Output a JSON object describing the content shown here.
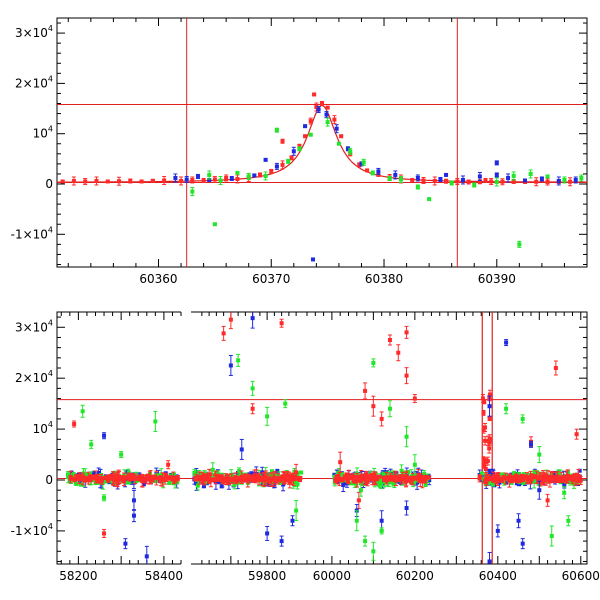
{
  "colors": {
    "red": "#ff2a2a",
    "blue": "#1f2ae0",
    "green": "#22e62a",
    "line": "#e02020",
    "axis": "#000000"
  },
  "chart_data": [
    {
      "type": "scatter",
      "title": "",
      "xlabel": "",
      "ylabel": "",
      "xlim": [
        60351,
        60398
      ],
      "ylim": [
        -16500,
        33000
      ],
      "x_ticks": [
        60360,
        60370,
        60380,
        60390
      ],
      "y_ticks": [
        {
          "value": -10000,
          "mant": "-1×10",
          "exp": "4"
        },
        {
          "value": 0,
          "mant": "0",
          "exp": ""
        },
        {
          "value": 10000,
          "mant": "10",
          "exp": "4"
        },
        {
          "value": 20000,
          "mant": "2×10",
          "exp": "4"
        },
        {
          "value": 30000,
          "mant": "3×10",
          "exp": "4"
        }
      ],
      "hlines": [
        15800,
        300
      ],
      "vlines": [
        60362.5,
        60386.5
      ],
      "grid": false,
      "model_curve": {
        "peak_x": 60374.5,
        "peak_y": 15600,
        "base_y": 300,
        "width": 1.6
      },
      "series": [
        {
          "color": "red",
          "points": [
            [
              60351.5,
              500
            ],
            [
              60352.5,
              600
            ],
            [
              60353.5,
              500
            ],
            [
              60354.5,
              600
            ],
            [
              60355.5,
              500
            ],
            [
              60356.5,
              550
            ],
            [
              60357.5,
              600
            ],
            [
              60358.5,
              500
            ],
            [
              60359.5,
              650
            ],
            [
              60360.5,
              700
            ],
            [
              60362.0,
              600
            ],
            [
              60363.0,
              800
            ],
            [
              60364.0,
              700
            ],
            [
              60365.0,
              900
            ],
            [
              60366.0,
              1200
            ],
            [
              60367.0,
              1000
            ],
            [
              60368.0,
              1300
            ],
            [
              60369.0,
              1800
            ],
            [
              60370.0,
              2500
            ],
            [
              60371.0,
              3800
            ],
            [
              60371.8,
              5200
            ],
            [
              60372.5,
              7500
            ],
            [
              60373.0,
              9500
            ],
            [
              60373.5,
              12500
            ],
            [
              60374.0,
              15300
            ],
            [
              60374.5,
              16000
            ],
            [
              60375.0,
              15200
            ],
            [
              60375.6,
              12800
            ],
            [
              60376.2,
              9500
            ],
            [
              60377.0,
              6000
            ],
            [
              60377.8,
              3800
            ],
            [
              60378.5,
              2700
            ],
            [
              60379.5,
              1800
            ],
            [
              60380.5,
              1300
            ],
            [
              60381.5,
              1000
            ],
            [
              60382.5,
              800
            ],
            [
              60383.5,
              700
            ],
            [
              60384.5,
              600
            ],
            [
              60385.5,
              550
            ],
            [
              60386.5,
              500
            ],
            [
              60387.5,
              400
            ],
            [
              60388.5,
              450
            ],
            [
              60389.5,
              500
            ],
            [
              60390.5,
              450
            ],
            [
              60391.5,
              500
            ],
            [
              60392.5,
              400
            ],
            [
              60393.5,
              450
            ],
            [
              60394.5,
              400
            ],
            [
              60395.5,
              500
            ],
            [
              60396.5,
              450
            ],
            [
              60371.0,
              8500
            ],
            [
              60373.8,
              17800
            ],
            [
              60389.0,
              700
            ]
          ]
        },
        {
          "color": "blue",
          "points": [
            [
              60361.5,
              1200
            ],
            [
              60362.5,
              900
            ],
            [
              60363.5,
              1500
            ],
            [
              60364.5,
              800
            ],
            [
              60366.5,
              1100
            ],
            [
              60368.5,
              1700
            ],
            [
              60369.5,
              4800
            ],
            [
              60370.5,
              3500
            ],
            [
              60372.0,
              6500
            ],
            [
              60373.0,
              11500
            ],
            [
              60374.2,
              14800
            ],
            [
              60374.9,
              13800
            ],
            [
              60375.8,
              11000
            ],
            [
              60376.8,
              7000
            ],
            [
              60378.0,
              4000
            ],
            [
              60379.5,
              2500
            ],
            [
              60381.0,
              1800
            ],
            [
              60383.0,
              1200
            ],
            [
              60385.0,
              900
            ],
            [
              60387.0,
              800
            ],
            [
              60388.5,
              1500
            ],
            [
              60390.0,
              1800
            ],
            [
              60391.0,
              1200
            ],
            [
              60392.5,
              700
            ],
            [
              60394.0,
              1000
            ],
            [
              60395.5,
              600
            ],
            [
              60397.0,
              800
            ],
            [
              60385.5,
              1800
            ],
            [
              60373.7,
              -15000
            ],
            [
              60390.0,
              4200
            ]
          ]
        },
        {
          "color": "green",
          "points": [
            [
              60364.5,
              1800
            ],
            [
              60365.5,
              700
            ],
            [
              60367.0,
              2200
            ],
            [
              60368.0,
              1500
            ],
            [
              60369.5,
              1600
            ],
            [
              60370.5,
              10700
            ],
            [
              60371.5,
              4500
            ],
            [
              60372.5,
              7000
            ],
            [
              60373.5,
              9800
            ],
            [
              60375.0,
              12300
            ],
            [
              60376.0,
              8000
            ],
            [
              60377.0,
              6500
            ],
            [
              60378.2,
              4300
            ],
            [
              60379.0,
              2200
            ],
            [
              60380.5,
              1100
            ],
            [
              60381.5,
              900
            ],
            [
              60383.0,
              -600
            ],
            [
              60384.0,
              -3000
            ],
            [
              60386.0,
              200
            ],
            [
              60388.0,
              -200
            ],
            [
              60390.0,
              400
            ],
            [
              60391.5,
              1600
            ],
            [
              60393.0,
              2000
            ],
            [
              60394.5,
              1500
            ],
            [
              60396.0,
              800
            ],
            [
              60397.5,
              1200
            ],
            [
              60365.0,
              -8000
            ],
            [
              60392.0,
              -12000
            ],
            [
              60363.0,
              -1500
            ]
          ]
        }
      ]
    },
    {
      "type": "scatter",
      "title": "",
      "xlabel": "",
      "ylabel": "",
      "segments": [
        {
          "xlim": [
            58150,
            58440
          ],
          "ticks": [
            58200,
            58300,
            58400
          ],
          "tick_labels": [
            58200,
            58400
          ]
        },
        {
          "xlim": [
            59590,
            59910
          ],
          "ticks": [
            59700,
            59800
          ],
          "tick_labels": [
            59800
          ]
        },
        {
          "xlim": [
            59940,
            60615
          ],
          "ticks": [
            60000,
            60100,
            60200,
            60300,
            60400,
            60500,
            60600
          ],
          "tick_labels": [
            60000,
            60200,
            60400,
            60600
          ]
        }
      ],
      "ylim": [
        -16500,
        33000
      ],
      "y_ticks": [
        {
          "value": -10000,
          "mant": "-1×10",
          "exp": "4"
        },
        {
          "value": 0,
          "mant": "0",
          "exp": ""
        },
        {
          "value": 10000,
          "mant": "10",
          "exp": "4"
        },
        {
          "value": 20000,
          "mant": "2×10",
          "exp": "4"
        },
        {
          "value": 30000,
          "mant": "3×10",
          "exp": "4"
        }
      ],
      "hlines": [
        15800,
        300
      ],
      "vlines": [
        60362.5,
        60386.5
      ],
      "grid": false,
      "clusters": [
        {
          "seg": 0,
          "x0": 58175,
          "x1": 58435,
          "n": 130
        },
        {
          "seg": 1,
          "x0": 59598,
          "x1": 59895,
          "n": 150
        },
        {
          "seg": 2,
          "x0": 60005,
          "x1": 60235,
          "n": 150
        },
        {
          "seg": 2,
          "x0": 60355,
          "x1": 60600,
          "n": 150
        }
      ],
      "outliers": [
        {
          "color": "red",
          "points": [
            [
              58190,
              11000
            ],
            [
              58260,
              -10500
            ],
            [
              58410,
              3000
            ],
            [
              59680,
              28800
            ],
            [
              59700,
              31500
            ],
            [
              59840,
              30800
            ],
            [
              59760,
              14000
            ],
            [
              59880,
              1500
            ],
            [
              60020,
              3500
            ],
            [
              60080,
              17500
            ],
            [
              60100,
              14500
            ],
            [
              60140,
              27500
            ],
            [
              60160,
              25000
            ],
            [
              60180,
              20500
            ],
            [
              60200,
              16000
            ],
            [
              60120,
              12000
            ],
            [
              60180,
              29000
            ],
            [
              60480,
              7500
            ],
            [
              60540,
              22000
            ],
            [
              60590,
              9000
            ],
            [
              60520,
              -4000
            ],
            [
              60065,
              -4000
            ]
          ]
        },
        {
          "color": "blue",
          "points": [
            [
              58260,
              8700
            ],
            [
              58310,
              -12500
            ],
            [
              58330,
              -4000
            ],
            [
              58360,
              -15000
            ],
            [
              58330,
              -7000
            ],
            [
              59700,
              22500
            ],
            [
              59760,
              31800
            ],
            [
              59730,
              6000
            ],
            [
              59800,
              -10500
            ],
            [
              59840,
              -12000
            ],
            [
              59870,
              -8000
            ],
            [
              60060,
              -6000
            ],
            [
              60120,
              -8000
            ],
            [
              60180,
              -5500
            ],
            [
              60380,
              14500
            ],
            [
              60400,
              -10000
            ],
            [
              60420,
              27000
            ],
            [
              60450,
              -8000
            ],
            [
              60480,
              7000
            ],
            [
              60500,
              -2000
            ],
            [
              60460,
              -12500
            ],
            [
              60380,
              -16000
            ]
          ]
        },
        {
          "color": "green",
          "points": [
            [
              58210,
              13500
            ],
            [
              58230,
              7000
            ],
            [
              58260,
              -3500
            ],
            [
              58300,
              5000
            ],
            [
              58380,
              11500
            ],
            [
              59650,
              2000
            ],
            [
              59720,
              23500
            ],
            [
              59760,
              18000
            ],
            [
              59800,
              12500
            ],
            [
              59850,
              15000
            ],
            [
              59880,
              -6000
            ],
            [
              60060,
              -8000
            ],
            [
              60080,
              -12000
            ],
            [
              60100,
              -14000
            ],
            [
              60120,
              -10000
            ],
            [
              60100,
              23000
            ],
            [
              60140,
              14000
            ],
            [
              60180,
              8500
            ],
            [
              60200,
              3000
            ],
            [
              60420,
              14000
            ],
            [
              60460,
              12000
            ],
            [
              60500,
              5000
            ],
            [
              60530,
              -11000
            ],
            [
              60570,
              -8000
            ],
            [
              60560,
              -2500
            ],
            [
              60070,
              -2000
            ]
          ]
        }
      ]
    }
  ]
}
